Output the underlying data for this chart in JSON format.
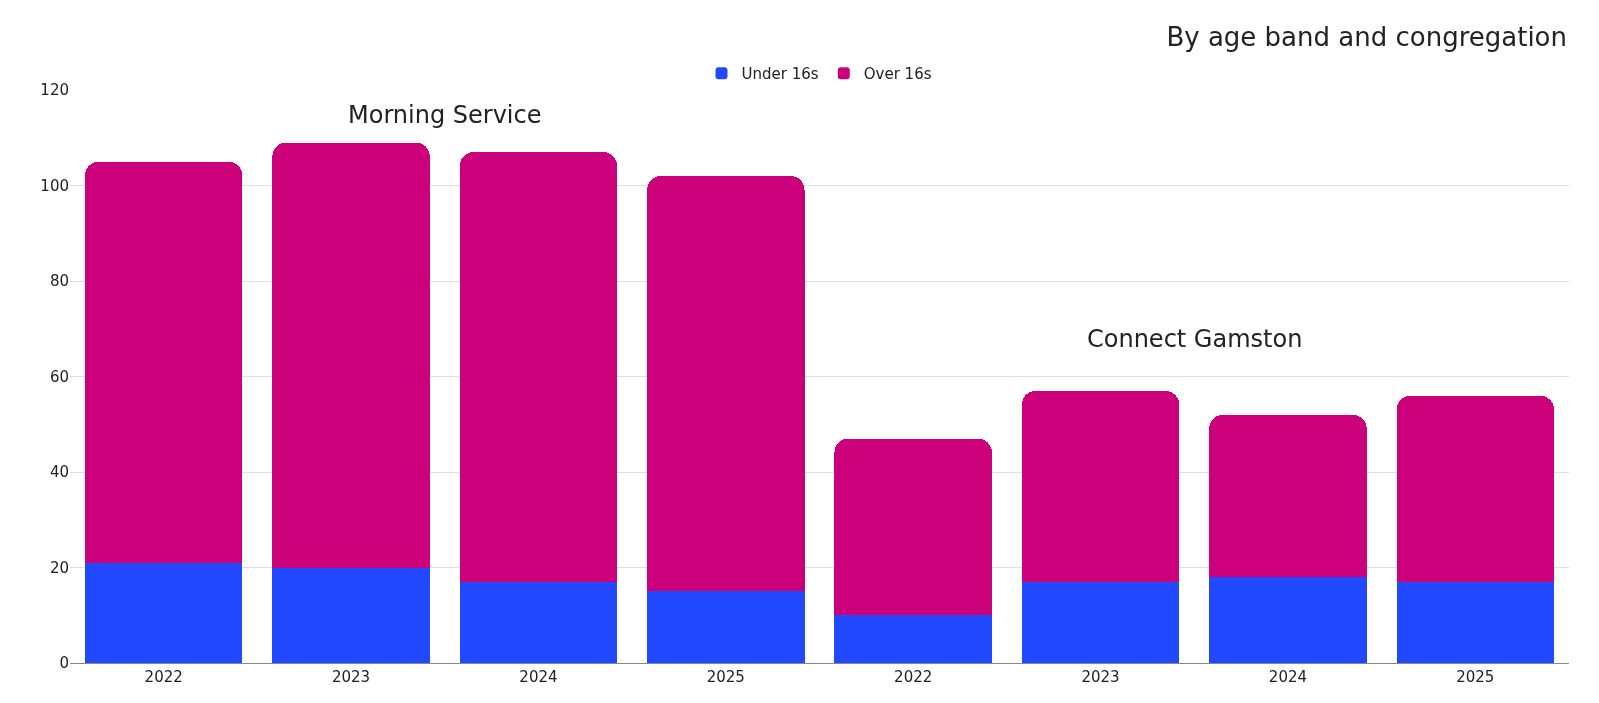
{
  "chart_data": {
    "type": "bar",
    "stacked": true,
    "title": "By age band and congregation",
    "categories": [
      "2022",
      "2023",
      "2024",
      "2025",
      "2022",
      "2023",
      "2024",
      "2025"
    ],
    "series": [
      {
        "name": "Under 16s",
        "color": "#2249ff",
        "values": [
          21,
          20,
          17,
          15,
          10,
          17,
          18,
          17
        ]
      },
      {
        "name": "Over 16s",
        "color": "#cc007a",
        "values": [
          84,
          89,
          90,
          87,
          37,
          40,
          34,
          39
        ]
      }
    ],
    "ylim": [
      0,
      120
    ],
    "yticks": [
      0,
      20,
      40,
      60,
      80,
      100,
      120
    ],
    "grid": "y",
    "legend": "top",
    "annotations": [
      "Morning Service",
      "Connect Gamston"
    ]
  }
}
